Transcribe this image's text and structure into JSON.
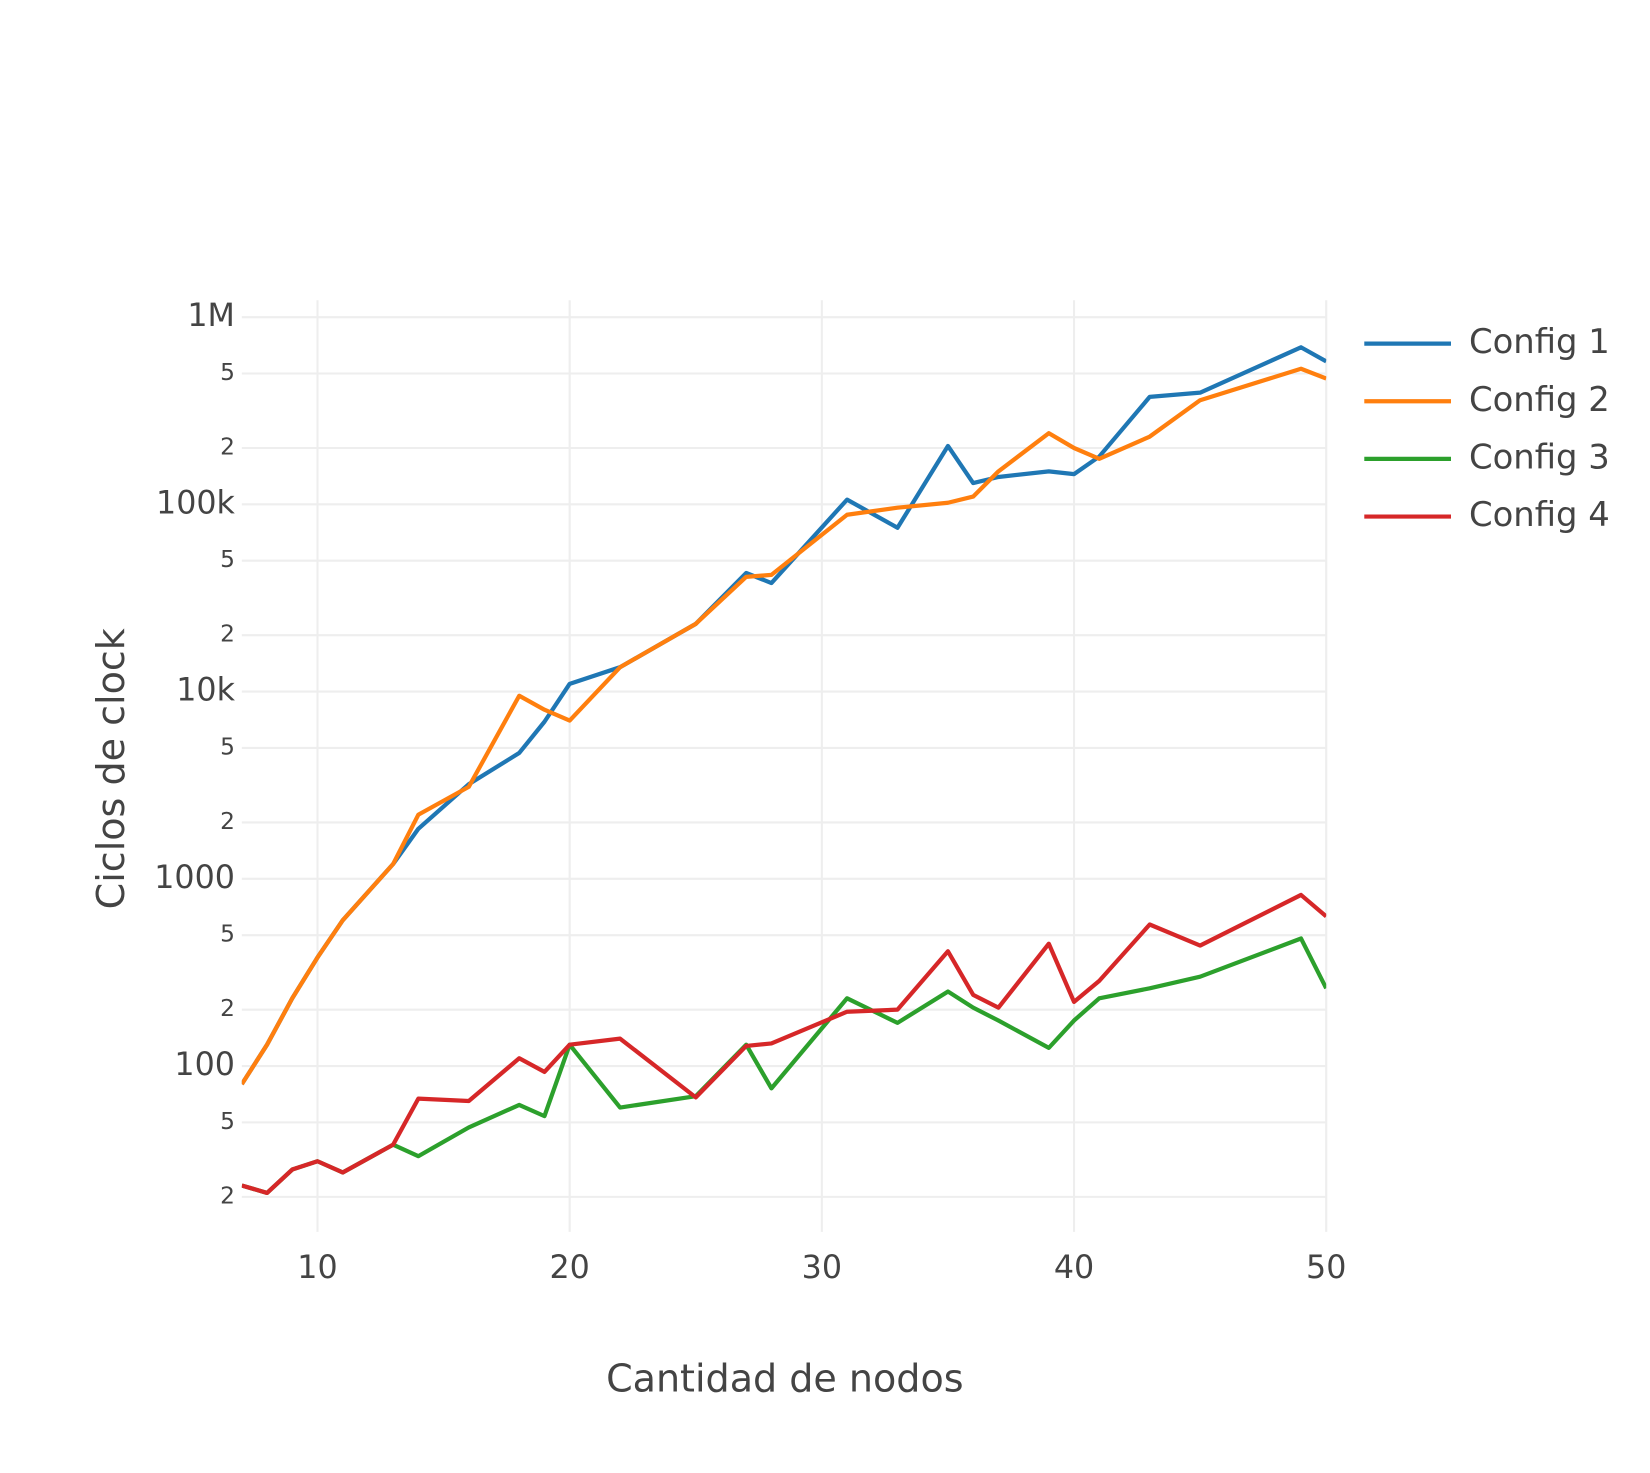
{
  "chart_data": {
    "type": "line",
    "xlabel": "Cantidad de nodos",
    "ylabel": "Ciclos de clock",
    "x": [
      7,
      8,
      9,
      10,
      11,
      13,
      14,
      16,
      18,
      19,
      20,
      22,
      25,
      27,
      28,
      31,
      33,
      35,
      36,
      37,
      39,
      40,
      41,
      43,
      45,
      49,
      50
    ],
    "series": [
      {
        "name": "Config 1",
        "color": "#1f77b4",
        "values": [
          80,
          130,
          230,
          380,
          600,
          1200,
          1850,
          3200,
          4700,
          6900,
          11000,
          13500,
          23000,
          43000,
          38000,
          106000,
          75000,
          205000,
          130000,
          140000,
          150000,
          145000,
          180000,
          375000,
          395000,
          690000,
          580000
        ]
      },
      {
        "name": "Config 2",
        "color": "#ff7f0e",
        "values": [
          80,
          130,
          230,
          380,
          600,
          1200,
          2200,
          3100,
          9500,
          8000,
          7000,
          13500,
          23000,
          41000,
          42000,
          88000,
          96000,
          102000,
          110000,
          150000,
          240000,
          200000,
          175000,
          230000,
          360000,
          530000,
          470000
        ]
      },
      {
        "name": "Config 3",
        "color": "#2ca02c",
        "values": [
          23,
          21,
          28,
          31,
          27,
          38,
          33,
          47,
          62,
          54,
          130,
          60,
          69,
          130,
          76,
          230,
          170,
          250,
          205,
          175,
          125,
          175,
          230,
          260,
          300,
          480,
          260
        ]
      },
      {
        "name": "Config 4",
        "color": "#d62728",
        "values": [
          23,
          21,
          28,
          31,
          27,
          38,
          67,
          65,
          110,
          93,
          130,
          140,
          68,
          128,
          132,
          195,
          200,
          410,
          240,
          205,
          450,
          220,
          285,
          570,
          440,
          820,
          630
        ]
      }
    ],
    "xlim": [
      7,
      50
    ],
    "xticks": [
      10,
      20,
      30,
      40,
      50
    ],
    "ylim": [
      13,
      1230000
    ],
    "ylog": true,
    "yticks": [
      {
        "value": 20,
        "label": "2"
      },
      {
        "value": 50,
        "label": "5"
      },
      100,
      {
        "value": 200,
        "label": "2"
      },
      {
        "value": 500,
        "label": "5"
      },
      1000,
      {
        "value": 2000,
        "label": "2"
      },
      {
        "value": 5000,
        "label": "5"
      },
      {
        "value": 10000,
        "label": "10k"
      },
      {
        "value": 20000,
        "label": "2"
      },
      {
        "value": 50000,
        "label": "5"
      },
      {
        "value": 100000,
        "label": "100k"
      },
      {
        "value": 200000,
        "label": "2"
      },
      {
        "value": 500000,
        "label": "5"
      },
      {
        "value": 1000000,
        "label": "1M"
      }
    ],
    "grid": true,
    "legend": "right"
  }
}
